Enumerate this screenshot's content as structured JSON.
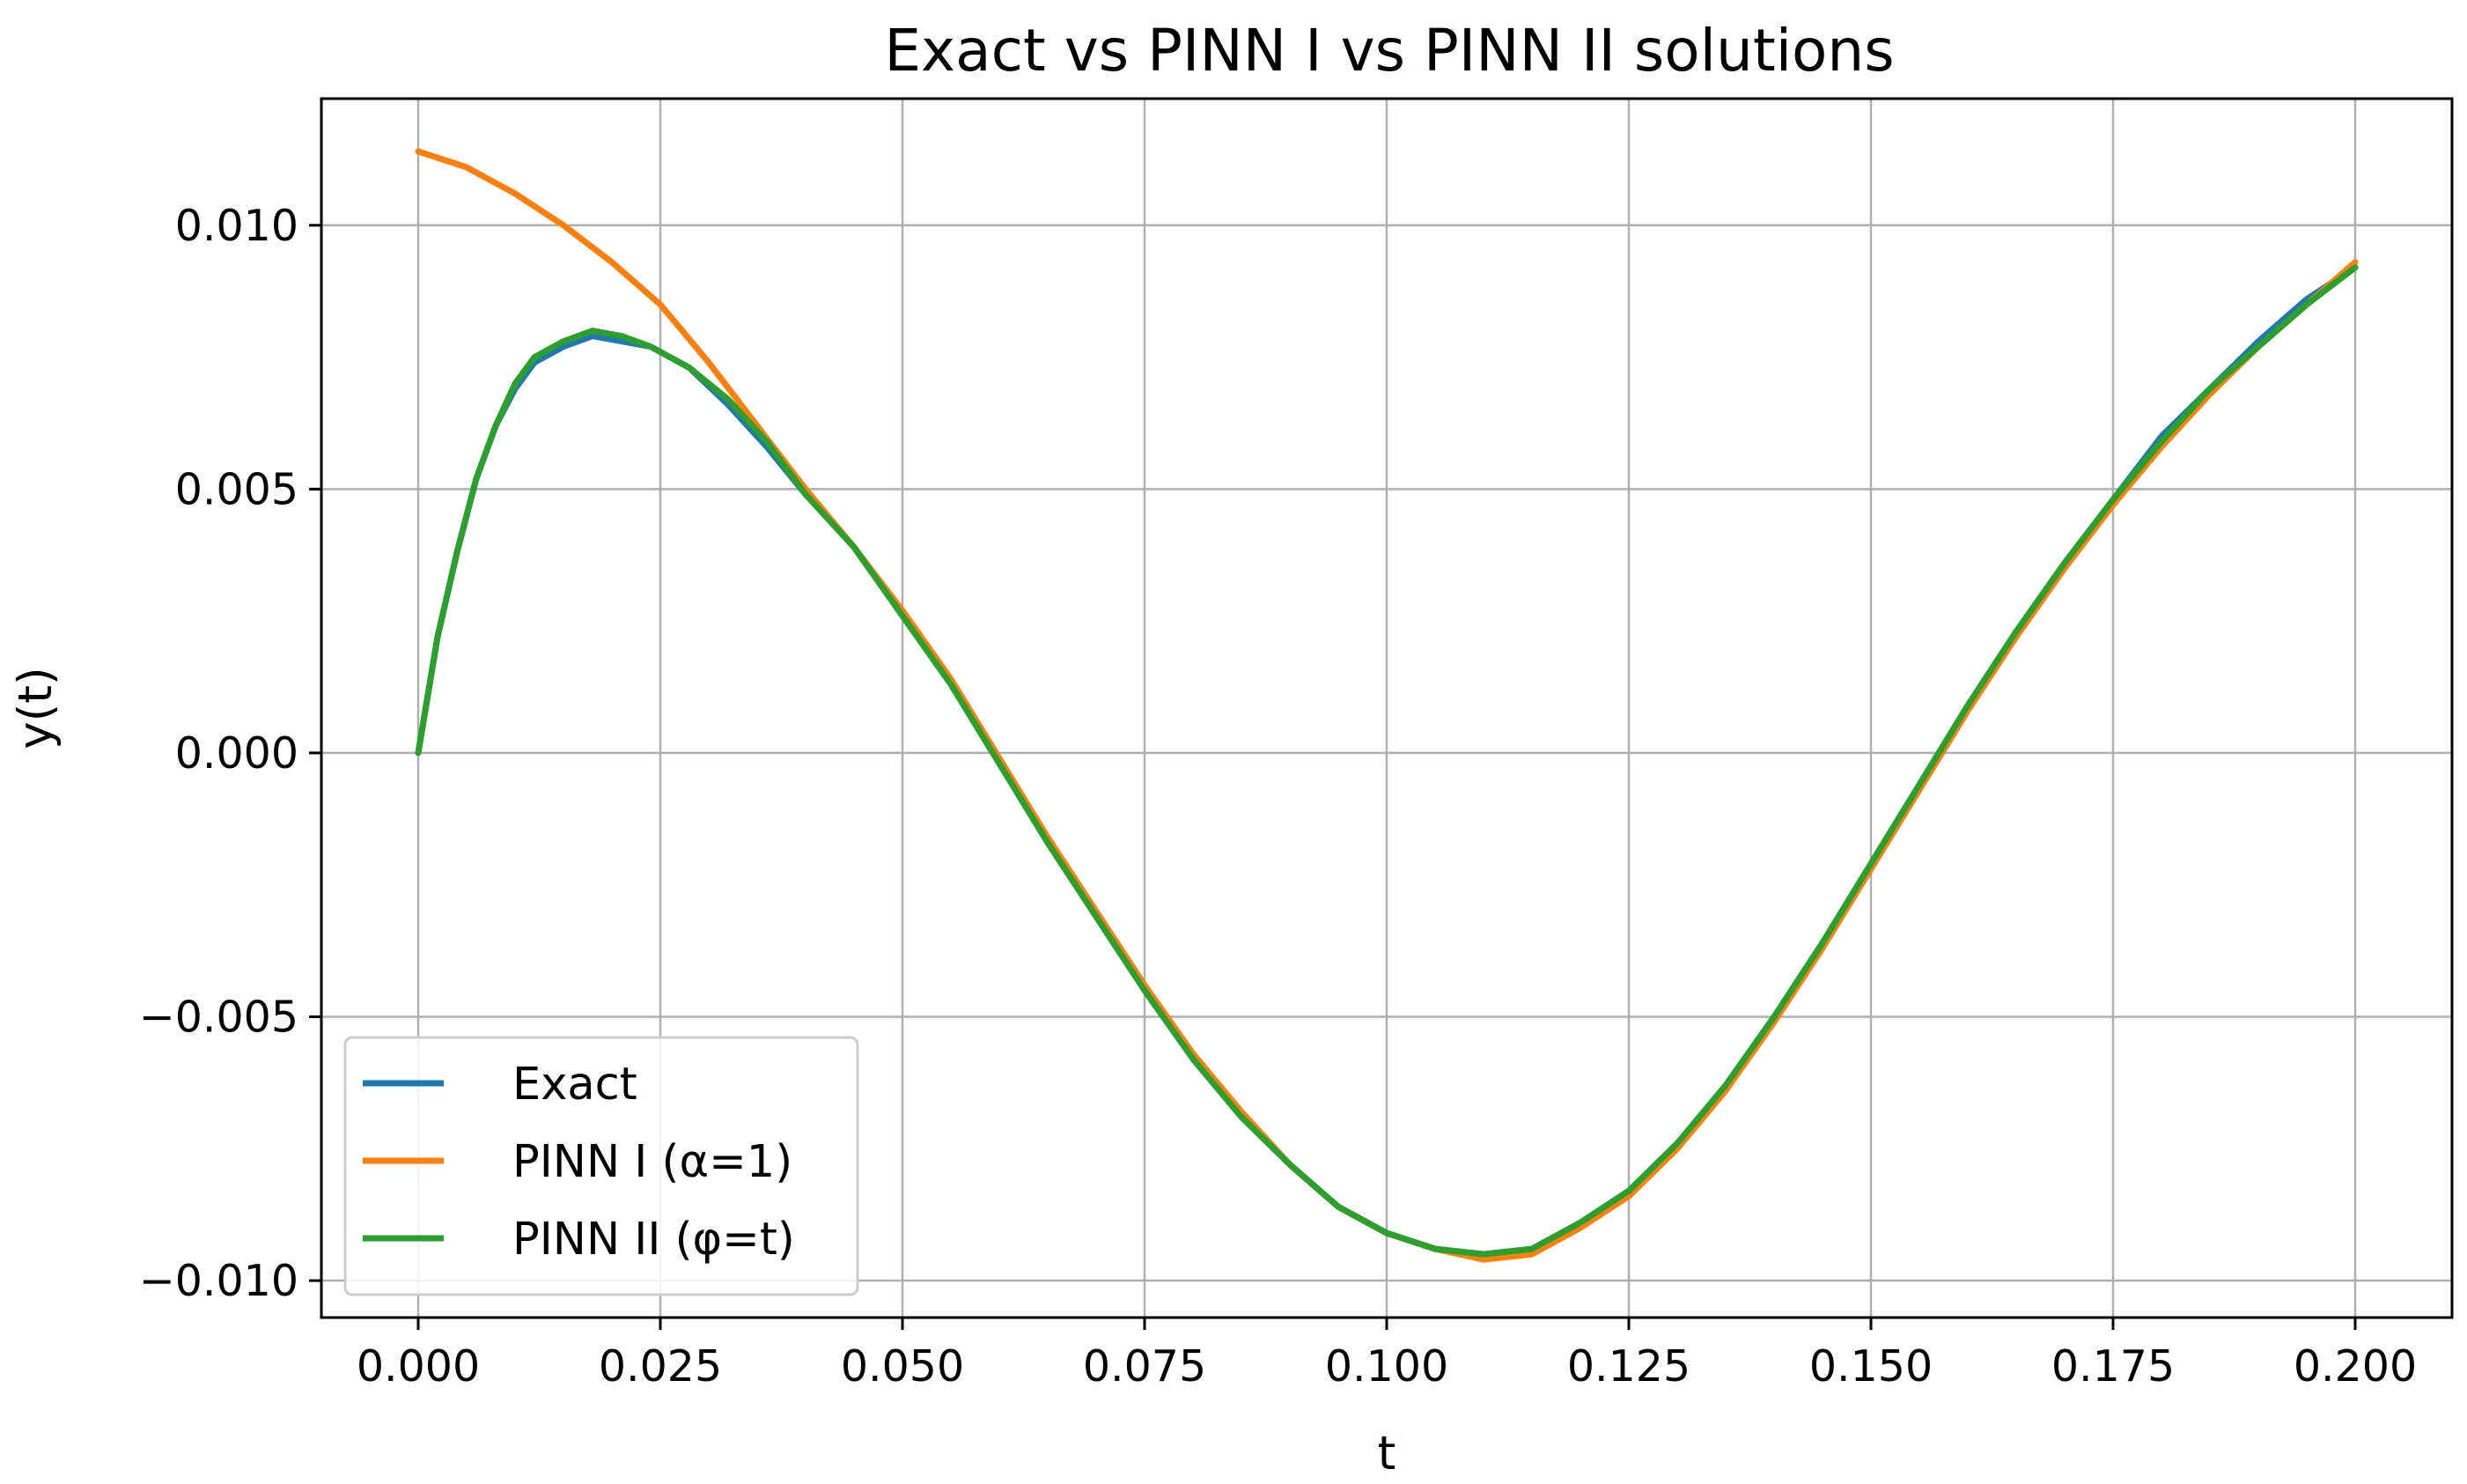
{
  "chart_data": {
    "type": "line",
    "title": "Exact vs PINN I vs PINN II solutions",
    "xlabel": "t",
    "ylabel": "y(t)",
    "xlim": [
      -0.01,
      0.21
    ],
    "ylim": [
      -0.0107,
      0.0124
    ],
    "xticks": [
      0.0,
      0.025,
      0.05,
      0.075,
      0.1,
      0.125,
      0.15,
      0.175,
      0.2
    ],
    "xtick_labels": [
      "0.000",
      "0.025",
      "0.050",
      "0.075",
      "0.100",
      "0.125",
      "0.150",
      "0.175",
      "0.200"
    ],
    "yticks": [
      0.01,
      0.005,
      0.0,
      -0.005,
      -0.01
    ],
    "ytick_labels": [
      "0.010",
      "0.005",
      "0.000",
      "−0.005",
      "−0.010"
    ],
    "grid": true,
    "legend_position": "lower-left",
    "series": [
      {
        "name": "Exact",
        "color": "#1f77b4",
        "x": [
          0.0,
          0.002,
          0.004,
          0.006,
          0.008,
          0.01,
          0.012,
          0.015,
          0.018,
          0.021,
          0.024,
          0.028,
          0.032,
          0.036,
          0.04,
          0.045,
          0.05,
          0.055,
          0.06,
          0.065,
          0.07,
          0.075,
          0.08,
          0.085,
          0.09,
          0.095,
          0.1,
          0.105,
          0.11,
          0.115,
          0.12,
          0.125,
          0.13,
          0.135,
          0.14,
          0.145,
          0.15,
          0.155,
          0.16,
          0.165,
          0.17,
          0.175,
          0.18,
          0.185,
          0.19,
          0.195,
          0.2
        ],
        "y": [
          0.0,
          0.0022,
          0.0038,
          0.0052,
          0.0062,
          0.0069,
          0.0074,
          0.0077,
          0.0079,
          0.0078,
          0.0077,
          0.0073,
          0.0066,
          0.0058,
          0.0049,
          0.0039,
          0.0026,
          0.0013,
          -0.0002,
          -0.0017,
          -0.0031,
          -0.0045,
          -0.0058,
          -0.0069,
          -0.0078,
          -0.0086,
          -0.0091,
          -0.0094,
          -0.0095,
          -0.0094,
          -0.0089,
          -0.0083,
          -0.0074,
          -0.0063,
          -0.005,
          -0.0036,
          -0.0021,
          -0.0006,
          0.0009,
          0.0023,
          0.0036,
          0.0048,
          0.006,
          0.0069,
          0.0078,
          0.0086,
          0.0092
        ]
      },
      {
        "name": "PINN I (α=1)",
        "color": "#ff7f0e",
        "x": [
          0.0,
          0.005,
          0.01,
          0.015,
          0.02,
          0.025,
          0.03,
          0.035,
          0.04,
          0.045,
          0.05,
          0.055,
          0.06,
          0.065,
          0.07,
          0.075,
          0.08,
          0.085,
          0.09,
          0.095,
          0.1,
          0.105,
          0.11,
          0.115,
          0.12,
          0.125,
          0.13,
          0.135,
          0.14,
          0.145,
          0.15,
          0.155,
          0.16,
          0.165,
          0.17,
          0.175,
          0.18,
          0.185,
          0.19,
          0.195,
          0.2
        ],
        "y": [
          0.0114,
          0.0111,
          0.0106,
          0.01,
          0.0093,
          0.0085,
          0.0074,
          0.0062,
          0.005,
          0.0039,
          0.0027,
          0.0014,
          -0.0001,
          -0.0016,
          -0.003,
          -0.0044,
          -0.0057,
          -0.0068,
          -0.0078,
          -0.0086,
          -0.0091,
          -0.0094,
          -0.0096,
          -0.0095,
          -0.009,
          -0.0084,
          -0.0075,
          -0.0064,
          -0.0051,
          -0.0037,
          -0.0022,
          -0.0007,
          0.0008,
          0.0022,
          0.0035,
          0.0047,
          0.0058,
          0.0068,
          0.0077,
          0.0085,
          0.0093
        ]
      },
      {
        "name": "PINN II (φ=t)",
        "color": "#2ca02c",
        "x": [
          0.0,
          0.002,
          0.004,
          0.006,
          0.008,
          0.01,
          0.012,
          0.015,
          0.018,
          0.021,
          0.024,
          0.028,
          0.032,
          0.036,
          0.04,
          0.045,
          0.05,
          0.055,
          0.06,
          0.065,
          0.07,
          0.075,
          0.08,
          0.085,
          0.09,
          0.095,
          0.1,
          0.105,
          0.11,
          0.115,
          0.12,
          0.125,
          0.13,
          0.135,
          0.14,
          0.145,
          0.15,
          0.155,
          0.16,
          0.165,
          0.17,
          0.175,
          0.18,
          0.185,
          0.19,
          0.195,
          0.2
        ],
        "y": [
          0.0,
          0.0022,
          0.0038,
          0.0052,
          0.0062,
          0.007,
          0.0075,
          0.0078,
          0.008,
          0.0079,
          0.0077,
          0.0073,
          0.0067,
          0.0059,
          0.0049,
          0.0039,
          0.0026,
          0.0013,
          -0.0002,
          -0.0017,
          -0.0031,
          -0.0045,
          -0.0058,
          -0.0069,
          -0.0078,
          -0.0086,
          -0.0091,
          -0.0094,
          -0.0095,
          -0.0094,
          -0.0089,
          -0.0083,
          -0.0074,
          -0.0063,
          -0.005,
          -0.0036,
          -0.0021,
          -0.0006,
          0.0009,
          0.0023,
          0.0036,
          0.0048,
          0.0059,
          0.0069,
          0.0077,
          0.0085,
          0.0092
        ]
      }
    ]
  }
}
